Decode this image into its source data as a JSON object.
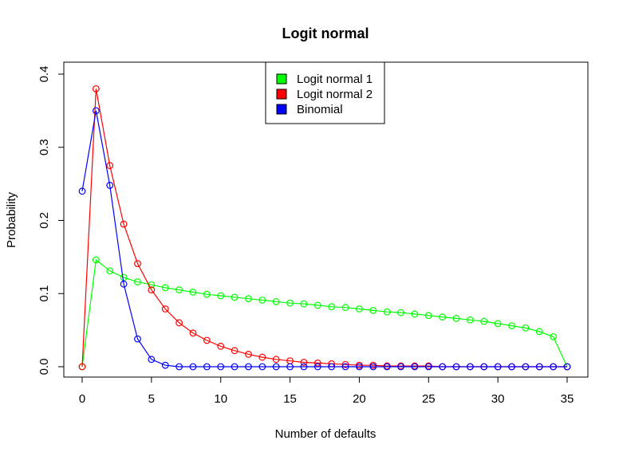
{
  "chart_data": {
    "type": "line",
    "title": "Logit normal",
    "xlabel": "Number of defaults",
    "ylabel": "Probability",
    "xlim": [
      0,
      35
    ],
    "ylim": [
      0,
      0.4
    ],
    "x_ticks": [
      0,
      5,
      10,
      15,
      20,
      25,
      30,
      35
    ],
    "y_ticks": [
      0.0,
      0.1,
      0.2,
      0.3,
      0.4
    ],
    "x_tick_labels": [
      "0",
      "5",
      "10",
      "15",
      "20",
      "25",
      "30",
      "35"
    ],
    "y_tick_labels": [
      "0.0",
      "0.1",
      "0.2",
      "0.3",
      "0.4"
    ],
    "legend_position": "top-center",
    "grid": false,
    "markers": "open-circle",
    "x": [
      0,
      1,
      2,
      3,
      4,
      5,
      6,
      7,
      8,
      9,
      10,
      11,
      12,
      13,
      14,
      15,
      16,
      17,
      18,
      19,
      20,
      21,
      22,
      23,
      24,
      25,
      26,
      27,
      28,
      29,
      30,
      31,
      32,
      33,
      34,
      35
    ],
    "series": [
      {
        "name": "Logit normal 1",
        "color": "#00ff00",
        "values": [
          0.0,
          0.146,
          0.131,
          0.122,
          0.116,
          0.112,
          0.108,
          0.105,
          0.102,
          0.099,
          0.097,
          0.095,
          0.093,
          0.091,
          0.089,
          0.087,
          0.086,
          0.084,
          0.082,
          0.081,
          0.079,
          0.077,
          0.075,
          0.074,
          0.072,
          0.07,
          0.068,
          0.066,
          0.064,
          0.062,
          0.059,
          0.056,
          0.053,
          0.048,
          0.041,
          0.0
        ]
      },
      {
        "name": "Logit normal 2",
        "color": "#ff0000",
        "values": [
          0.0,
          0.38,
          0.275,
          0.195,
          0.141,
          0.105,
          0.079,
          0.06,
          0.046,
          0.036,
          0.028,
          0.022,
          0.017,
          0.013,
          0.01,
          0.008,
          0.006,
          0.005,
          0.004,
          0.003,
          0.002,
          0.002,
          0.001,
          0.001,
          0.001,
          0.001,
          0.0,
          0.0,
          0.0,
          0.0,
          0.0,
          0.0,
          0.0,
          0.0,
          0.0,
          0.0
        ]
      },
      {
        "name": "Binomial",
        "color": "#0000ff",
        "values": [
          0.24,
          0.35,
          0.248,
          0.113,
          0.038,
          0.01,
          0.002,
          0.0,
          0.0,
          0.0,
          0.0,
          0.0,
          0.0,
          0.0,
          0.0,
          0.0,
          0.0,
          0.0,
          0.0,
          0.0,
          0.0,
          0.0,
          0.0,
          0.0,
          0.0,
          0.0,
          0.0,
          0.0,
          0.0,
          0.0,
          0.0,
          0.0,
          0.0,
          0.0,
          0.0,
          0.0
        ]
      }
    ]
  }
}
